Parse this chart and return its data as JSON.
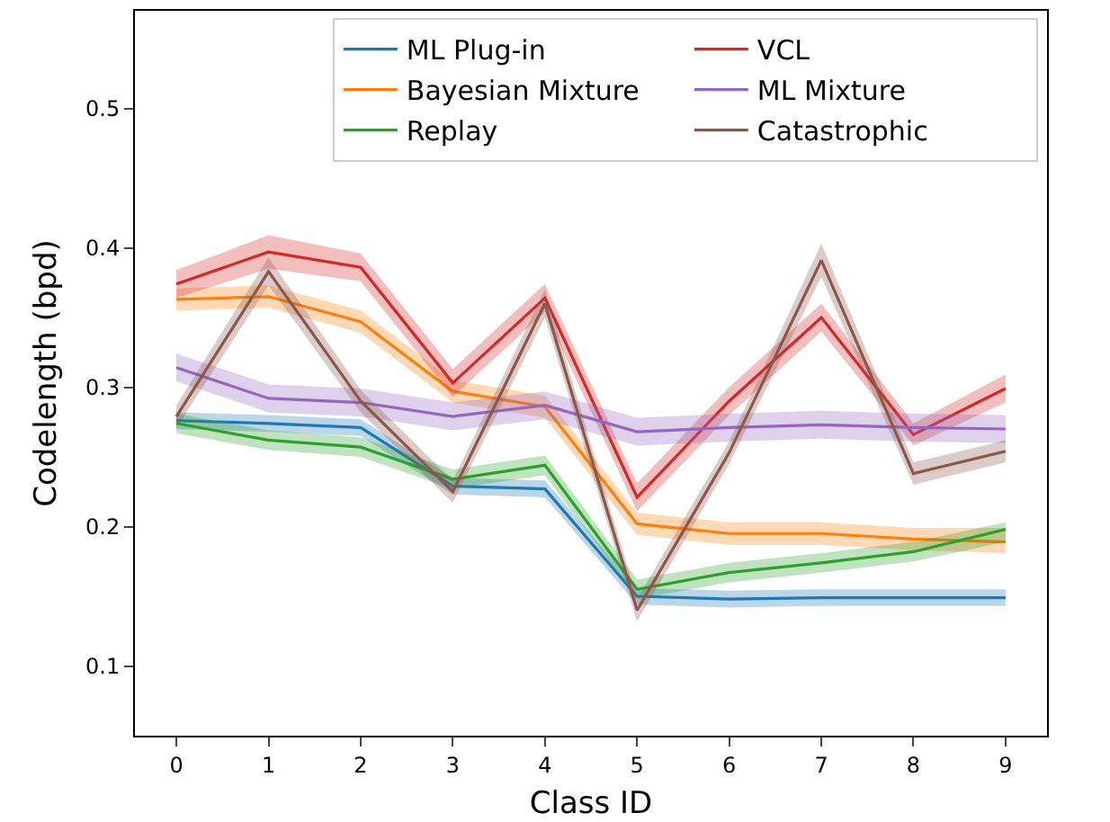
{
  "chart_data": {
    "type": "line",
    "xlabel": "Class ID",
    "ylabel": "Codelength (bpd)",
    "x": [
      0,
      1,
      2,
      3,
      4,
      5,
      6,
      7,
      8,
      9
    ],
    "xlim": [
      -0.45,
      9.45
    ],
    "xticks": [
      0,
      1,
      2,
      3,
      4,
      5,
      6,
      7,
      8,
      9
    ],
    "ylim": [
      0.05,
      0.57
    ],
    "yticks": [
      0.1,
      0.2,
      0.3,
      0.4,
      0.5
    ],
    "grid": false,
    "legend": "top right",
    "marker": "none",
    "line_style": "solid",
    "series": [
      {
        "name": "ML Plug-in",
        "color": "#1f77b4",
        "values": [
          0.276,
          0.274,
          0.271,
          0.229,
          0.227,
          0.15,
          0.148,
          0.149,
          0.149,
          0.149
        ],
        "lower": [
          0.27,
          0.268,
          0.265,
          0.223,
          0.221,
          0.144,
          0.142,
          0.143,
          0.143,
          0.143
        ],
        "upper": [
          0.282,
          0.28,
          0.277,
          0.235,
          0.233,
          0.156,
          0.154,
          0.155,
          0.155,
          0.155
        ]
      },
      {
        "name": "Bayesian Mixture",
        "color": "#ff7f0e",
        "values": [
          0.363,
          0.365,
          0.347,
          0.297,
          0.286,
          0.202,
          0.195,
          0.195,
          0.191,
          0.189
        ],
        "lower": [
          0.355,
          0.357,
          0.339,
          0.289,
          0.278,
          0.194,
          0.187,
          0.187,
          0.183,
          0.181
        ],
        "upper": [
          0.371,
          0.373,
          0.355,
          0.305,
          0.294,
          0.21,
          0.203,
          0.203,
          0.199,
          0.199
        ]
      },
      {
        "name": "Replay",
        "color": "#2ca02c",
        "values": [
          0.274,
          0.262,
          0.257,
          0.234,
          0.244,
          0.155,
          0.167,
          0.174,
          0.182,
          0.198
        ],
        "lower": [
          0.267,
          0.255,
          0.25,
          0.227,
          0.237,
          0.148,
          0.16,
          0.167,
          0.175,
          0.189
        ],
        "upper": [
          0.281,
          0.269,
          0.264,
          0.241,
          0.251,
          0.162,
          0.174,
          0.181,
          0.189,
          0.203
        ]
      },
      {
        "name": "VCL",
        "color": "#d62728",
        "values": [
          0.374,
          0.397,
          0.386,
          0.303,
          0.364,
          0.221,
          0.29,
          0.35,
          0.266,
          0.299
        ],
        "lower": [
          0.364,
          0.385,
          0.376,
          0.293,
          0.354,
          0.211,
          0.28,
          0.34,
          0.258,
          0.289
        ],
        "upper": [
          0.384,
          0.409,
          0.396,
          0.313,
          0.374,
          0.231,
          0.3,
          0.36,
          0.274,
          0.309
        ]
      },
      {
        "name": "ML Mixture",
        "color": "#9467bd",
        "values": [
          0.314,
          0.292,
          0.289,
          0.279,
          0.287,
          0.268,
          0.271,
          0.273,
          0.271,
          0.27
        ],
        "lower": [
          0.304,
          0.282,
          0.279,
          0.269,
          0.277,
          0.258,
          0.261,
          0.263,
          0.261,
          0.26
        ],
        "upper": [
          0.324,
          0.302,
          0.299,
          0.289,
          0.297,
          0.278,
          0.281,
          0.283,
          0.281,
          0.28
        ]
      },
      {
        "name": "Catastrophic",
        "color": "#8c564b",
        "values": [
          0.279,
          0.383,
          0.29,
          0.225,
          0.36,
          0.14,
          0.253,
          0.391,
          0.238,
          0.254
        ],
        "lower": [
          0.271,
          0.373,
          0.282,
          0.217,
          0.35,
          0.132,
          0.245,
          0.379,
          0.23,
          0.246
        ],
        "upper": [
          0.287,
          0.393,
          0.298,
          0.233,
          0.37,
          0.148,
          0.261,
          0.403,
          0.246,
          0.262
        ]
      }
    ]
  }
}
